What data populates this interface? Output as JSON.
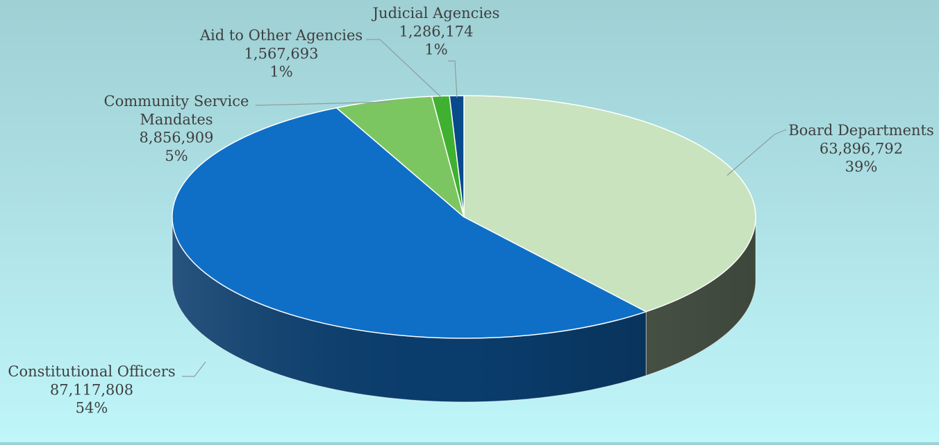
{
  "chart_data": {
    "type": "pie",
    "style": "3d",
    "title": "",
    "slices": [
      {
        "label_lines": [
          "Board Departments"
        ],
        "value_label": "63,896,792",
        "percent_label": "39%",
        "value": 63896792,
        "color": "#c8e3bd",
        "side_color": "#525e4f"
      },
      {
        "label_lines": [
          "Constitutional Officers"
        ],
        "value_label": "87,117,808",
        "percent_label": "54%",
        "value": 87117808,
        "color": "#0f6fc6",
        "side_color": "#0a3d6d"
      },
      {
        "label_lines": [
          "Community Service",
          "Mandates"
        ],
        "value_label": "8,856,909",
        "percent_label": "5%",
        "value": 8856909,
        "color": "#7cc661",
        "side_color": "#3f6b32"
      },
      {
        "label_lines": [
          "Aid to Other Agencies"
        ],
        "value_label": "1,567,693",
        "percent_label": "1%",
        "value": 1567693,
        "color": "#40b030",
        "side_color": "#205818"
      },
      {
        "label_lines": [
          "Judicial Agencies"
        ],
        "value_label": "1,286,174",
        "percent_label": "1%",
        "value": 1286174,
        "color": "#084a8c",
        "side_color": "#042648"
      }
    ]
  }
}
